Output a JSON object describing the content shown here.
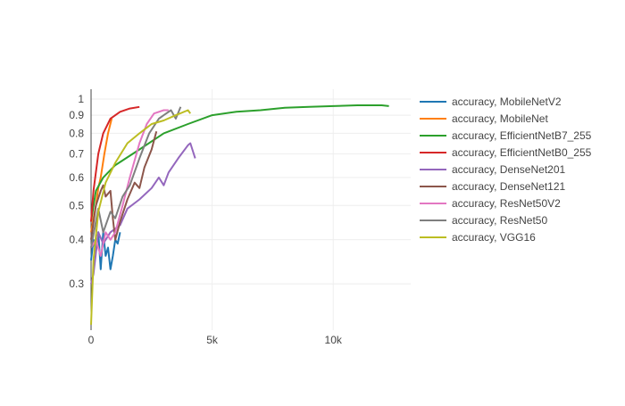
{
  "chart_data": {
    "type": "line",
    "title": "",
    "xlabel": "",
    "ylabel": "",
    "y_scale": "log",
    "xlim": [
      0,
      13200
    ],
    "ylim": [
      0.222,
      1.066
    ],
    "x_ticks": [
      {
        "v": 0,
        "label": "0"
      },
      {
        "v": 5000,
        "label": "5k"
      },
      {
        "v": 10000,
        "label": "10k"
      }
    ],
    "y_ticks": [
      {
        "v": 0.3,
        "label": "0.3"
      },
      {
        "v": 0.4,
        "label": "0.4"
      },
      {
        "v": 0.5,
        "label": "0.5"
      },
      {
        "v": 0.6,
        "label": "0.6"
      },
      {
        "v": 0.7,
        "label": "0.7"
      },
      {
        "v": 0.8,
        "label": "0.8"
      },
      {
        "v": 0.9,
        "label": "0.9"
      },
      {
        "v": 1,
        "label": "1"
      }
    ],
    "grid": true,
    "legend_position": "right",
    "series": [
      {
        "name": "accuracy, MobileNetV2",
        "color": "#1f77b4",
        "points": [
          [
            0,
            0.35
          ],
          [
            100,
            0.4
          ],
          [
            200,
            0.37
          ],
          [
            300,
            0.42
          ],
          [
            400,
            0.33
          ],
          [
            500,
            0.42
          ],
          [
            600,
            0.36
          ],
          [
            700,
            0.38
          ],
          [
            800,
            0.33
          ],
          [
            900,
            0.36
          ],
          [
            1000,
            0.4
          ],
          [
            1100,
            0.39
          ],
          [
            1200,
            0.42
          ]
        ]
      },
      {
        "name": "accuracy, MobileNet",
        "color": "#ff7f0e",
        "points": [
          [
            0,
            0.42
          ],
          [
            100,
            0.46
          ],
          [
            200,
            0.5
          ],
          [
            300,
            0.56
          ],
          [
            400,
            0.6
          ],
          [
            550,
            0.7
          ],
          [
            700,
            0.8
          ],
          [
            850,
            0.88
          ]
        ]
      },
      {
        "name": "accuracy, EfficientNetB7_255",
        "color": "#2ca02c",
        "points": [
          [
            0,
            0.45
          ],
          [
            200,
            0.55
          ],
          [
            500,
            0.6
          ],
          [
            1000,
            0.65
          ],
          [
            2000,
            0.72
          ],
          [
            3000,
            0.8
          ],
          [
            4000,
            0.85
          ],
          [
            5000,
            0.9
          ],
          [
            6000,
            0.92
          ],
          [
            7000,
            0.93
          ],
          [
            8000,
            0.945
          ],
          [
            9000,
            0.95
          ],
          [
            10000,
            0.955
          ],
          [
            11000,
            0.96
          ],
          [
            12000,
            0.96
          ],
          [
            12300,
            0.955
          ]
        ]
      },
      {
        "name": "accuracy, EfficientNetB0_255",
        "color": "#d62728",
        "points": [
          [
            0,
            0.45
          ],
          [
            100,
            0.55
          ],
          [
            300,
            0.7
          ],
          [
            500,
            0.8
          ],
          [
            800,
            0.88
          ],
          [
            1200,
            0.92
          ],
          [
            1600,
            0.94
          ],
          [
            2000,
            0.95
          ]
        ]
      },
      {
        "name": "accuracy, DenseNet201",
        "color": "#9467bd",
        "points": [
          [
            0,
            0.3
          ],
          [
            100,
            0.32
          ],
          [
            300,
            0.42
          ],
          [
            500,
            0.39
          ],
          [
            800,
            0.42
          ],
          [
            1200,
            0.44
          ],
          [
            1500,
            0.49
          ],
          [
            2000,
            0.52
          ],
          [
            2500,
            0.56
          ],
          [
            2800,
            0.6
          ],
          [
            3000,
            0.57
          ],
          [
            3200,
            0.62
          ],
          [
            3600,
            0.68
          ],
          [
            4000,
            0.74
          ],
          [
            4100,
            0.75
          ],
          [
            4300,
            0.68
          ]
        ]
      },
      {
        "name": "accuracy, DenseNet121",
        "color": "#8c564b",
        "points": [
          [
            0,
            0.4
          ],
          [
            200,
            0.5
          ],
          [
            400,
            0.55
          ],
          [
            500,
            0.57
          ],
          [
            600,
            0.53
          ],
          [
            800,
            0.55
          ],
          [
            900,
            0.46
          ],
          [
            1000,
            0.4
          ],
          [
            1200,
            0.45
          ],
          [
            1500,
            0.52
          ],
          [
            1800,
            0.58
          ],
          [
            2000,
            0.56
          ],
          [
            2200,
            0.64
          ],
          [
            2500,
            0.72
          ],
          [
            2700,
            0.81
          ]
        ]
      },
      {
        "name": "accuracy, ResNet50V2",
        "color": "#e377c2",
        "points": [
          [
            0,
            0.38
          ],
          [
            200,
            0.4
          ],
          [
            400,
            0.36
          ],
          [
            600,
            0.42
          ],
          [
            800,
            0.4
          ],
          [
            1000,
            0.42
          ],
          [
            1300,
            0.5
          ],
          [
            1600,
            0.6
          ],
          [
            2000,
            0.75
          ],
          [
            2300,
            0.85
          ],
          [
            2600,
            0.91
          ],
          [
            3000,
            0.93
          ],
          [
            3200,
            0.93
          ]
        ]
      },
      {
        "name": "accuracy, ResNet50",
        "color": "#7f7f7f",
        "points": [
          [
            0,
            0.38
          ],
          [
            200,
            0.45
          ],
          [
            300,
            0.49
          ],
          [
            500,
            0.42
          ],
          [
            800,
            0.48
          ],
          [
            1000,
            0.46
          ],
          [
            1300,
            0.53
          ],
          [
            1600,
            0.57
          ],
          [
            2000,
            0.68
          ],
          [
            2400,
            0.8
          ],
          [
            2800,
            0.88
          ],
          [
            3000,
            0.9
          ],
          [
            3300,
            0.93
          ],
          [
            3500,
            0.88
          ],
          [
            3700,
            0.95
          ]
        ]
      },
      {
        "name": "accuracy, VGG16",
        "color": "#bcbd22",
        "points": [
          [
            0,
            0.23
          ],
          [
            100,
            0.35
          ],
          [
            300,
            0.48
          ],
          [
            600,
            0.58
          ],
          [
            1000,
            0.66
          ],
          [
            1500,
            0.75
          ],
          [
            2000,
            0.8
          ],
          [
            2500,
            0.85
          ],
          [
            3000,
            0.87
          ],
          [
            3500,
            0.9
          ],
          [
            4000,
            0.93
          ],
          [
            4100,
            0.91
          ]
        ]
      }
    ]
  }
}
